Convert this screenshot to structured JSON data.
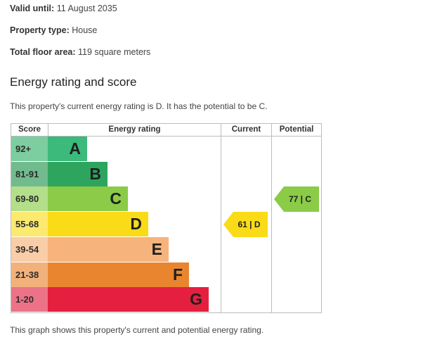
{
  "details": {
    "valid_label": "Valid until:",
    "valid_value": "11 August 2035",
    "type_label": "Property type:",
    "type_value": "House",
    "area_label": "Total floor area:",
    "area_value": "119 square meters"
  },
  "heading": "Energy rating and score",
  "intro": "This property's current energy rating is D. It has the potential to be C.",
  "table": {
    "headers": {
      "score": "Score",
      "rating": "Energy rating",
      "current": "Current",
      "potential": "Potential"
    },
    "bands": [
      {
        "letter": "A",
        "range": "92+",
        "color": "#3bba7b",
        "score_bg": "#7ccd9f"
      },
      {
        "letter": "B",
        "range": "81-91",
        "color": "#2da55e",
        "score_bg": "#72bb8e"
      },
      {
        "letter": "C",
        "range": "69-80",
        "color": "#8bcb47",
        "score_bg": "#b3de8a"
      },
      {
        "letter": "D",
        "range": "55-68",
        "color": "#fadb18",
        "score_bg": "#fbe970"
      },
      {
        "letter": "E",
        "range": "39-54",
        "color": "#f7b37c",
        "score_bg": "#f9cda8"
      },
      {
        "letter": "F",
        "range": "21-38",
        "color": "#ea852f",
        "score_bg": "#f2b17b"
      },
      {
        "letter": "G",
        "range": "1-20",
        "color": "#e4203e",
        "score_bg": "#ec7387"
      }
    ],
    "current": {
      "label": "61 | D",
      "band": "D",
      "color": "#fadb18"
    },
    "potential": {
      "label": "77 | C",
      "band": "C",
      "color": "#8bcb47"
    }
  },
  "footer": "This graph shows this property's current and potential energy rating."
}
